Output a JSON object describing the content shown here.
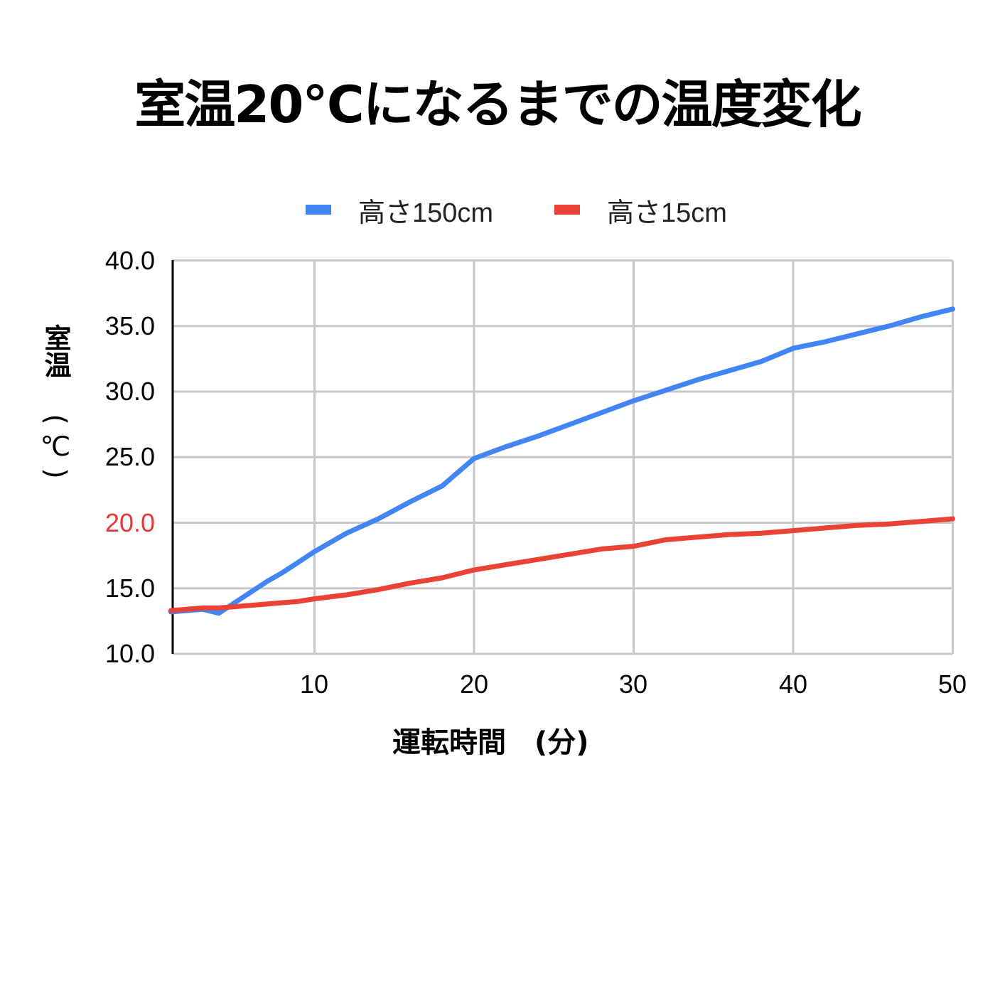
{
  "title": "室温20℃になるまでの温度変化",
  "legend": [
    {
      "label": "高さ150cm",
      "color": "#4285f4"
    },
    {
      "label": "高さ15cm",
      "color": "#ea4335"
    }
  ],
  "axes": {
    "y_title_main": "室温",
    "y_title_unit": "℃",
    "x_title": "運転時間　(分)",
    "y_ticks": [
      "40.0",
      "35.0",
      "30.0",
      "25.0",
      "20.0",
      "15.0",
      "10.0"
    ],
    "y_highlight_tick": "20.0",
    "y_highlight_color": "#e53935",
    "x_ticks": [
      "10",
      "20",
      "30",
      "40",
      "50"
    ]
  },
  "chart_data": {
    "type": "line",
    "title": "室温20℃になるまでの温度変化",
    "xlabel": "運転時間　(分)",
    "ylabel": "室温（℃）",
    "xlim": [
      1,
      50
    ],
    "ylim": [
      10,
      40
    ],
    "x_ticks": [
      10,
      20,
      30,
      40,
      50
    ],
    "y_ticks": [
      10,
      15,
      20,
      25,
      30,
      35,
      40
    ],
    "grid": true,
    "legend_position": "top",
    "x": [
      1,
      2,
      3,
      4,
      5,
      6,
      7,
      8,
      9,
      10,
      12,
      14,
      16,
      18,
      20,
      22,
      24,
      26,
      28,
      30,
      32,
      34,
      36,
      38,
      40,
      42,
      44,
      46,
      48,
      50
    ],
    "series": [
      {
        "name": "高さ150cm",
        "color": "#4285f4",
        "values": [
          13.2,
          13.3,
          13.4,
          13.1,
          13.9,
          14.7,
          15.5,
          16.2,
          17.0,
          17.8,
          19.2,
          20.3,
          21.6,
          22.8,
          24.9,
          25.8,
          26.6,
          27.5,
          28.4,
          29.3,
          30.1,
          30.9,
          31.6,
          32.3,
          33.3,
          33.8,
          34.4,
          35.0,
          35.7,
          36.3
        ]
      },
      {
        "name": "高さ15cm",
        "color": "#ea4335",
        "values": [
          13.3,
          13.4,
          13.5,
          13.5,
          13.6,
          13.7,
          13.8,
          13.9,
          14.0,
          14.2,
          14.5,
          14.9,
          15.4,
          15.8,
          16.4,
          16.8,
          17.2,
          17.6,
          18.0,
          18.2,
          18.7,
          18.9,
          19.1,
          19.2,
          19.4,
          19.6,
          19.8,
          19.9,
          20.1,
          20.3
        ]
      }
    ]
  }
}
